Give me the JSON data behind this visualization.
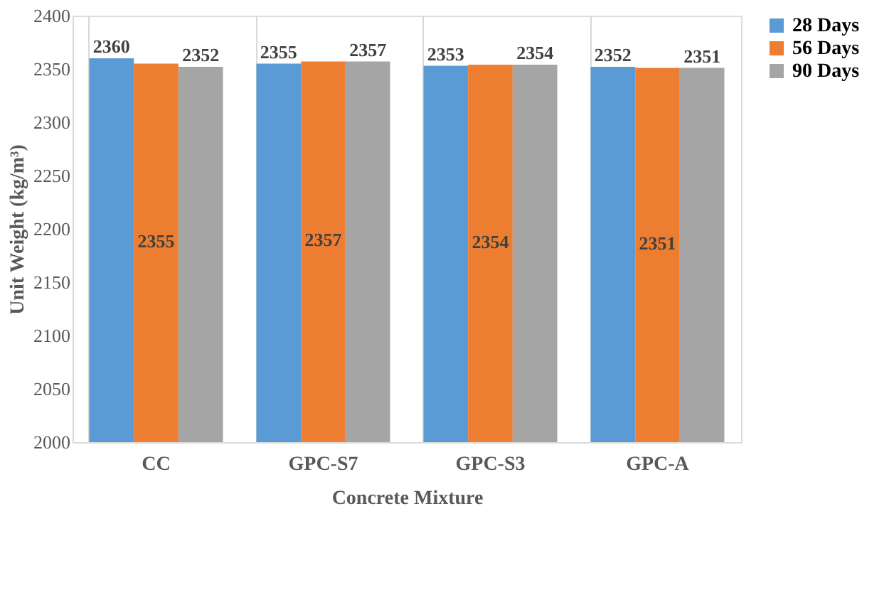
{
  "chart_data": {
    "type": "bar",
    "xlabel": "Concrete Mixture",
    "ylabel": "Unit Weight (kg/m³)",
    "categories": [
      "CC",
      "GPC-S7",
      "GPC-S3",
      "GPC-A"
    ],
    "series": [
      {
        "name": "28 Days",
        "color": "#5b9bd5",
        "values": [
          2360,
          2355,
          2353,
          2352
        ]
      },
      {
        "name": "56 Days",
        "color": "#ed7d31",
        "values": [
          2355,
          2357,
          2354,
          2351
        ]
      },
      {
        "name": "90 Days",
        "color": "#a5a5a5",
        "values": [
          2352,
          2357,
          2354,
          2351
        ]
      }
    ],
    "ylim": [
      2000,
      2400
    ],
    "yticks": [
      2000,
      2050,
      2100,
      2150,
      2200,
      2250,
      2300,
      2350,
      2400
    ],
    "grid": "x",
    "legend": "right",
    "data_labels": true
  }
}
